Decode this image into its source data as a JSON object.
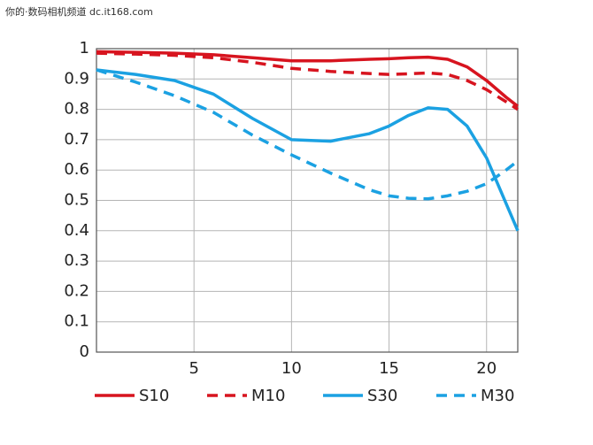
{
  "chart_data": {
    "type": "line",
    "source": "你的·数码相机频道 dc.it168.com",
    "x": [
      0,
      2,
      4,
      6,
      8,
      10,
      12,
      14,
      15,
      16,
      17,
      18,
      19,
      20,
      21,
      21.6
    ],
    "series": [
      {
        "name": "S10",
        "color": "#d7141f",
        "dash": false,
        "values": [
          0.99,
          0.988,
          0.985,
          0.98,
          0.97,
          0.96,
          0.96,
          0.965,
          0.967,
          0.97,
          0.972,
          0.965,
          0.94,
          0.895,
          0.84,
          0.81
        ]
      },
      {
        "name": "M10",
        "color": "#d7141f",
        "dash": true,
        "values": [
          0.985,
          0.982,
          0.978,
          0.97,
          0.955,
          0.935,
          0.925,
          0.918,
          0.915,
          0.917,
          0.92,
          0.915,
          0.895,
          0.865,
          0.825,
          0.8
        ]
      },
      {
        "name": "S30",
        "color": "#1ba1e2",
        "dash": false,
        "values": [
          0.93,
          0.915,
          0.895,
          0.85,
          0.77,
          0.7,
          0.695,
          0.72,
          0.745,
          0.78,
          0.805,
          0.8,
          0.745,
          0.64,
          0.49,
          0.4
        ]
      },
      {
        "name": "M30",
        "color": "#1ba1e2",
        "dash": true,
        "values": [
          0.93,
          0.89,
          0.845,
          0.79,
          0.715,
          0.65,
          0.59,
          0.535,
          0.515,
          0.507,
          0.505,
          0.515,
          0.53,
          0.555,
          0.6,
          0.63
        ]
      }
    ],
    "xlim": [
      0,
      21.6
    ],
    "xticks": [
      5,
      10,
      15,
      20
    ],
    "ylim": [
      0,
      1
    ],
    "yticks": [
      0,
      0.1,
      0.2,
      0.3,
      0.4,
      0.5,
      0.6,
      0.7,
      0.8,
      0.9,
      1
    ],
    "grid": true
  }
}
